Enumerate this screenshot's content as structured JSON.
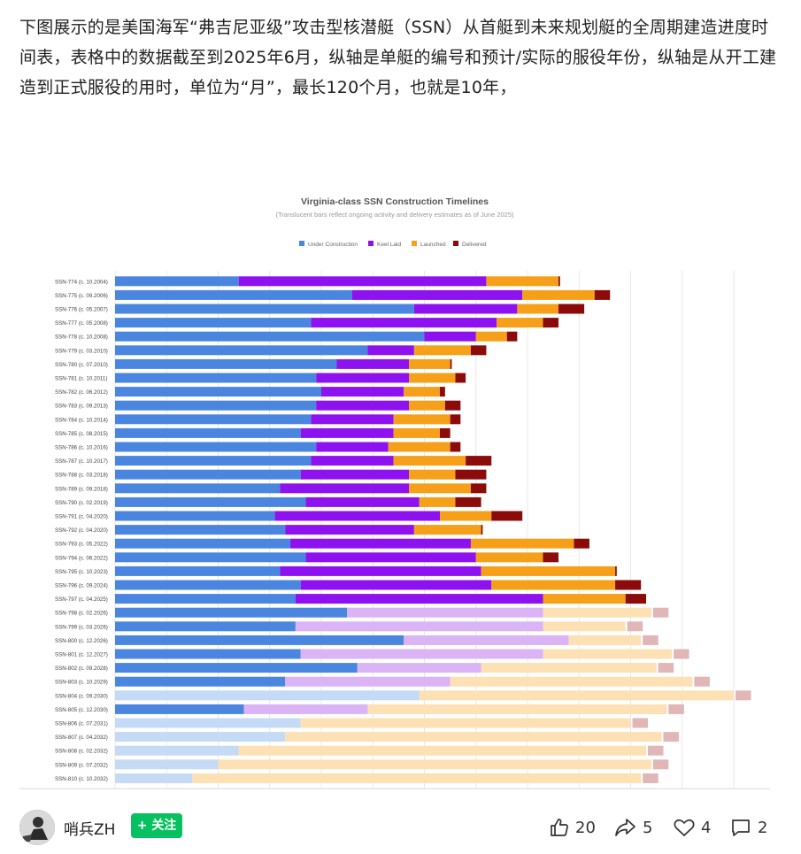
{
  "post": {
    "text": "下图展示的是美国海军“弗吉尼亚级”攻击型核潜艇（SSN）从首艇到未来规划艇的全周期建造进度时间表，表格中的数据截至到2025年6月，纵轴是单艇的编号和预计/实际的服役年份，纵轴是从开工建造到正式服役的用时，单位为“月”，最长120个月，也就是10年，"
  },
  "chart_data": {
    "type": "bar",
    "stacked": true,
    "orientation": "horizontal",
    "title": "Virginia-class SSN Construction Timelines",
    "subtitle": "(Translucent bars reflect ongoing activity and delivery estimates as of June 2025)",
    "xlabel": "",
    "ylabel": "",
    "xlim": [
      0,
      126
    ],
    "grid": true,
    "legend_position": "top",
    "legend": [
      "Under Construction",
      "Keel Laid",
      "Launched",
      "Delivered"
    ],
    "colors": {
      "under": "#4a86e0",
      "keel": "#8e11ef",
      "launched": "#f6a019",
      "delivered": "#8b0a0a"
    },
    "faded_colors": {
      "under": "#c5daf5",
      "keel": "#dbb4f6",
      "launched": "#fde0b4",
      "delivered": "#e0b6b6"
    },
    "boats": [
      {
        "label": "SSN-774 (c. 10.2004)",
        "under": 24,
        "keel": 48,
        "launched": 14,
        "delivered": 0.3,
        "faded": false
      },
      {
        "label": "SSN-775 (c. 09.2006)",
        "under": 46,
        "keel": 33,
        "launched": 14,
        "delivered": 3,
        "faded": false
      },
      {
        "label": "SSN-776 (c. 05.2007)",
        "under": 58,
        "keel": 20,
        "launched": 8,
        "delivered": 5,
        "faded": false
      },
      {
        "label": "SSN-777 (c. 05.2008)",
        "under": 38,
        "keel": 36,
        "launched": 9,
        "delivered": 3,
        "faded": false
      },
      {
        "label": "SSN-778 (c. 10.2008)",
        "under": 60,
        "keel": 10,
        "launched": 6,
        "delivered": 2,
        "faded": false
      },
      {
        "label": "SSN-779 (c. 03.2010)",
        "under": 49,
        "keel": 9,
        "launched": 11,
        "delivered": 3,
        "faded": false
      },
      {
        "label": "SSN-780 (c. 07.2010)",
        "under": 43,
        "keel": 14,
        "launched": 8,
        "delivered": 0.3,
        "faded": false
      },
      {
        "label": "SSN-781 (c. 10.2011)",
        "under": 39,
        "keel": 18,
        "launched": 9,
        "delivered": 2,
        "faded": false
      },
      {
        "label": "SSN-782 (c. 06.2012)",
        "under": 40,
        "keel": 16,
        "launched": 7,
        "delivered": 1,
        "faded": false
      },
      {
        "label": "SSN-783 (c. 09.2013)",
        "under": 39,
        "keel": 18,
        "launched": 7,
        "delivered": 3,
        "faded": false
      },
      {
        "label": "SSN-784 (c. 10.2014)",
        "under": 38,
        "keel": 16,
        "launched": 11,
        "delivered": 2,
        "faded": false
      },
      {
        "label": "SSN-785 (c. 08.2015)",
        "under": 36,
        "keel": 18,
        "launched": 9,
        "delivered": 2,
        "faded": false
      },
      {
        "label": "SSN-786 (c. 10.2016)",
        "under": 39,
        "keel": 14,
        "launched": 12,
        "delivered": 2,
        "faded": false
      },
      {
        "label": "SSN-787 (c. 10.2017)",
        "under": 38,
        "keel": 16,
        "launched": 14,
        "delivered": 5,
        "faded": false
      },
      {
        "label": "SSN-788 (c. 03.2018)",
        "under": 36,
        "keel": 21,
        "launched": 9,
        "delivered": 6,
        "faded": false
      },
      {
        "label": "SSN-789 (c. 09.2018)",
        "under": 32,
        "keel": 25,
        "launched": 12,
        "delivered": 3,
        "faded": false
      },
      {
        "label": "SSN-790 (c. 02.2019)",
        "under": 37,
        "keel": 22,
        "launched": 7,
        "delivered": 5,
        "faded": false
      },
      {
        "label": "SSN-791 (c. 04.2020)",
        "under": 31,
        "keel": 32,
        "launched": 10,
        "delivered": 6,
        "faded": false
      },
      {
        "label": "SSN-792 (c. 04.2020)",
        "under": 33,
        "keel": 25,
        "launched": 13,
        "delivered": 0.3,
        "faded": false
      },
      {
        "label": "SSN-793 (c. 05.2022)",
        "under": 34,
        "keel": 35,
        "launched": 20,
        "delivered": 3,
        "faded": false
      },
      {
        "label": "SSN-794 (c. 06.2022)",
        "under": 37,
        "keel": 33,
        "launched": 13,
        "delivered": 3,
        "faded": false
      },
      {
        "label": "SSN-795 (c. 10.2023)",
        "under": 32,
        "keel": 39,
        "launched": 26,
        "delivered": 0.3,
        "faded": false
      },
      {
        "label": "SSN-796 (c. 09.2024)",
        "under": 36,
        "keel": 37,
        "launched": 24,
        "delivered": 5,
        "faded": false
      },
      {
        "label": "SSN-797 (c. 04.2025)",
        "under": 35,
        "keel": 48,
        "launched": 16,
        "delivered": 4,
        "faded": false
      },
      {
        "label": "SSN-798 (c. 02.2026)",
        "under": 45,
        "keel": 38,
        "launched": 21,
        "delivered": 3,
        "faded": true
      },
      {
        "label": "SSN-799 (c. 03.2026)",
        "under": 35,
        "keel": 48,
        "launched": 16,
        "delivered": 3,
        "faded": true
      },
      {
        "label": "SSN-800 (c. 12.2026)",
        "under": 56,
        "keel": 32,
        "launched": 14,
        "delivered": 3,
        "faded": true
      },
      {
        "label": "SSN-801 (c. 12.2027)",
        "under": 36,
        "keel": 47,
        "launched": 25,
        "delivered": 3,
        "faded": true
      },
      {
        "label": "SSN-802 (c. 09.2028)",
        "under": 47,
        "keel": 24,
        "launched": 34,
        "delivered": 3,
        "faded": true
      },
      {
        "label": "SSN-803 (c. 10.2029)",
        "under": 33,
        "keel": 32,
        "launched": 47,
        "delivered": 3,
        "faded": true
      },
      {
        "label": "SSN-804 (c. 09.2030)",
        "under": 59,
        "keel": 0,
        "launched": 61,
        "delivered": 3,
        "faded": true
      },
      {
        "label": "SSN-805 (c. 12.2030)",
        "under": 25,
        "keel": 24,
        "launched": 58,
        "delivered": 3,
        "faded": true
      },
      {
        "label": "SSN-806 (c. 07.2031)",
        "under": 36,
        "keel": 0,
        "launched": 64,
        "delivered": 3,
        "faded": true
      },
      {
        "label": "SSN-807 (c. 04.2032)",
        "under": 33,
        "keel": 0,
        "launched": 73,
        "delivered": 3,
        "faded": true
      },
      {
        "label": "SSN-808 (c. 02.2032)",
        "under": 24,
        "keel": 0,
        "launched": 79,
        "delivered": 3,
        "faded": true
      },
      {
        "label": "SSN-809 (c. 07.2032)",
        "under": 20,
        "keel": 0,
        "launched": 84,
        "delivered": 3,
        "faded": true
      },
      {
        "label": "SSN-810 (c. 10.2032)",
        "under": 15,
        "keel": 0,
        "launched": 87,
        "delivered": 3,
        "faded": true
      }
    ]
  },
  "footer": {
    "username": "哨兵ZH",
    "follow_label": "+ 关注",
    "like_count": "20",
    "share_count": "5",
    "favorite_count": "4",
    "comment_count": "2"
  }
}
